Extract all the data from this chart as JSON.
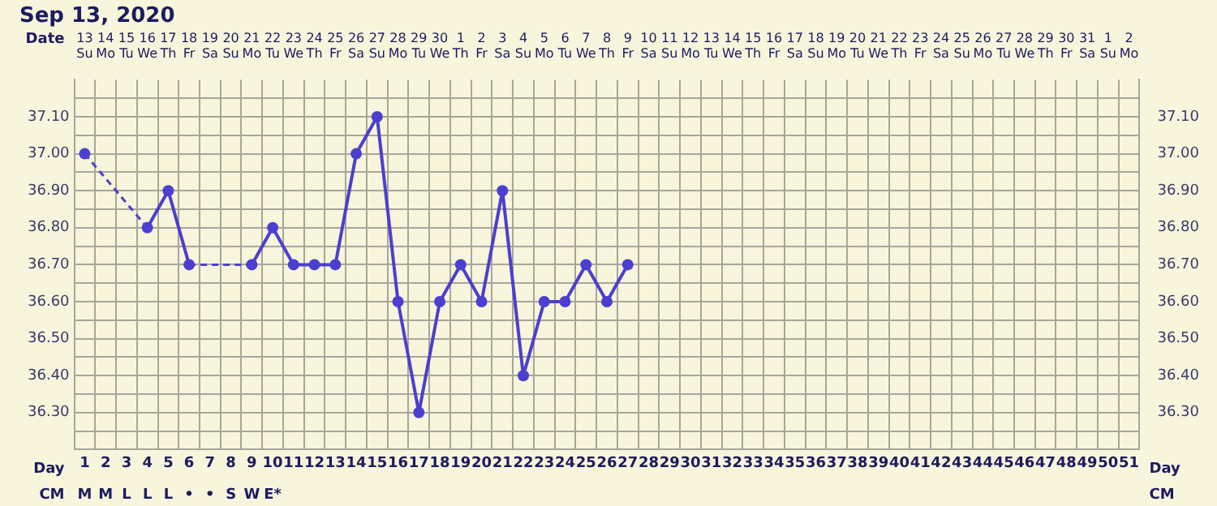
{
  "chart_data": {
    "type": "line",
    "title": "Sep 13, 2020",
    "xlabel": "Day",
    "x2label": "Date",
    "x": [
      1,
      2,
      3,
      4,
      5,
      6,
      7,
      8,
      9,
      10,
      11,
      12,
      13,
      14,
      15,
      16,
      17,
      18,
      19,
      20,
      21,
      22,
      23,
      24,
      25,
      26,
      27
    ],
    "series": [
      {
        "color": "#4b3fcf",
        "values": [
          37.0,
          null,
          null,
          36.8,
          36.9,
          36.7,
          null,
          null,
          36.7,
          36.8,
          36.7,
          36.7,
          36.7,
          37.0,
          37.1,
          36.6,
          36.3,
          36.6,
          36.7,
          36.6,
          36.9,
          36.4,
          36.6,
          36.6,
          36.7,
          36.6,
          36.7
        ]
      }
    ],
    "xlim": [
      0.5,
      51.5
    ],
    "xticks": [
      1,
      2,
      3,
      4,
      5,
      6,
      7,
      8,
      9,
      10,
      11,
      12,
      13,
      14,
      15,
      16,
      17,
      18,
      19,
      20,
      21,
      22,
      23,
      24,
      25,
      26,
      27,
      28,
      29,
      30,
      31,
      32,
      33,
      34,
      35,
      36,
      37,
      38,
      39,
      40,
      41,
      42,
      43,
      44,
      45,
      46,
      47,
      48,
      49,
      50,
      51
    ],
    "x2lim": [
      "2020-09-12T12:00",
      "2020-11-02T12:00"
    ],
    "x2ticks": [
      {
        "value": "2020-09-13",
        "label": "13\nSu"
      },
      {
        "value": "2020-09-14",
        "label": "14\nMo"
      },
      {
        "value": "2020-09-15",
        "label": "15\nTu"
      },
      {
        "value": "2020-09-16",
        "label": "16\nWe"
      },
      {
        "value": "2020-09-17",
        "label": "17\nTh"
      },
      {
        "value": "2020-09-18",
        "label": "18\nFr"
      },
      {
        "value": "2020-09-19",
        "label": "19\nSa"
      },
      {
        "value": "2020-09-20",
        "label": "20\nSu"
      },
      {
        "value": "2020-09-21",
        "label": "21\nMo"
      },
      {
        "value": "2020-09-22",
        "label": "22\nTu"
      },
      {
        "value": "2020-09-23",
        "label": "23\nWe"
      },
      {
        "value": "2020-09-24",
        "label": "24\nTh"
      },
      {
        "value": "2020-09-25",
        "label": "25\nFr"
      },
      {
        "value": "2020-09-26",
        "label": "26\nSa"
      },
      {
        "value": "2020-09-27",
        "label": "27\nSu"
      },
      {
        "value": "2020-09-28",
        "label": "28\nMo"
      },
      {
        "value": "2020-09-29",
        "label": "29\nTu"
      },
      {
        "value": "2020-09-30",
        "label": "30\nWe"
      },
      {
        "value": "2020-10-01",
        "label": "1\nTh"
      },
      {
        "value": "2020-10-02",
        "label": "2\nFr"
      },
      {
        "value": "2020-10-03",
        "label": "3\nSa"
      },
      {
        "value": "2020-10-04",
        "label": "4\nSu"
      },
      {
        "value": "2020-10-05",
        "label": "5\nMo"
      },
      {
        "value": "2020-10-06",
        "label": "6\nTu"
      },
      {
        "value": "2020-10-07",
        "label": "7\nWe"
      },
      {
        "value": "2020-10-08",
        "label": "8\nTh"
      },
      {
        "value": "2020-10-09",
        "label": "9\nFr"
      },
      {
        "value": "2020-10-10",
        "label": "10\nSa"
      },
      {
        "value": "2020-10-11",
        "label": "11\nSu"
      },
      {
        "value": "2020-10-12",
        "label": "12\nMo"
      },
      {
        "value": "2020-10-13",
        "label": "13\nTu"
      },
      {
        "value": "2020-10-14",
        "label": "14\nWe"
      },
      {
        "value": "2020-10-15",
        "label": "15\nTh"
      },
      {
        "value": "2020-10-16",
        "label": "16\nFr"
      },
      {
        "value": "2020-10-17",
        "label": "17\nSa"
      },
      {
        "value": "2020-10-18",
        "label": "18\nSu"
      },
      {
        "value": "2020-10-19",
        "label": "19\nMo"
      },
      {
        "value": "2020-10-20",
        "label": "20\nTu"
      },
      {
        "value": "2020-10-21",
        "label": "21\nWe"
      },
      {
        "value": "2020-10-22",
        "label": "22\nTh"
      },
      {
        "value": "2020-10-23",
        "label": "23\nFr"
      },
      {
        "value": "2020-10-24",
        "label": "24\nSa"
      },
      {
        "value": "2020-10-25",
        "label": "25\nSu"
      },
      {
        "value": "2020-10-26",
        "label": "26\nMo"
      },
      {
        "value": "2020-10-27",
        "label": "27\nTu"
      },
      {
        "value": "2020-10-28",
        "label": "28\nWe"
      },
      {
        "value": "2020-10-29",
        "label": "29\nTh"
      },
      {
        "value": "2020-10-30",
        "label": "30\nFr"
      },
      {
        "value": "2020-10-31",
        "label": "31\nSa"
      },
      {
        "value": "2020-11-01",
        "label": "1\nSu"
      },
      {
        "value": "2020-11-02",
        "label": "2\nMo"
      }
    ],
    "ylim": [
      36.2,
      37.2
    ],
    "yticks": [
      {
        "value": 36.25,
        "label": null
      },
      {
        "value": 36.3,
        "label": "36.30"
      },
      {
        "value": 36.35,
        "label": null
      },
      {
        "value": 36.4,
        "label": "36.40"
      },
      {
        "value": 36.45,
        "label": null
      },
      {
        "value": 36.5,
        "label": "36.50"
      },
      {
        "value": 36.55,
        "label": null
      },
      {
        "value": 36.6,
        "label": "36.60"
      },
      {
        "value": 36.65,
        "label": null
      },
      {
        "value": 36.7,
        "label": "36.70"
      },
      {
        "value": 36.75,
        "label": null
      },
      {
        "value": 36.8,
        "label": "36.80"
      },
      {
        "value": 36.85,
        "label": null
      },
      {
        "value": 36.9,
        "label": "36.90"
      },
      {
        "value": 36.95,
        "label": null
      },
      {
        "value": 37.0,
        "label": "37.00"
      },
      {
        "value": 37.05,
        "label": null
      },
      {
        "value": 37.1,
        "label": "37.10"
      },
      {
        "value": 37.15,
        "label": null
      }
    ],
    "y2lim": [
      36.2,
      37.2
    ],
    "y2ticks": [
      {
        "value": 36.25,
        "label": null
      },
      {
        "value": 36.3,
        "label": "36.30"
      },
      {
        "value": 36.35,
        "label": null
      },
      {
        "value": 36.4,
        "label": "36.40"
      },
      {
        "value": 36.45,
        "label": null
      },
      {
        "value": 36.5,
        "label": "36.50"
      },
      {
        "value": 36.55,
        "label": null
      },
      {
        "value": 36.6,
        "label": "36.60"
      },
      {
        "value": 36.65,
        "label": null
      },
      {
        "value": 36.7,
        "label": "36.70"
      },
      {
        "value": 36.75,
        "label": null
      },
      {
        "value": 36.8,
        "label": "36.80"
      },
      {
        "value": 36.85,
        "label": null
      },
      {
        "value": 36.9,
        "label": "36.90"
      },
      {
        "value": 36.95,
        "label": null
      },
      {
        "value": 37.0,
        "label": "37.00"
      },
      {
        "value": 37.05,
        "label": null
      },
      {
        "value": 37.1,
        "label": "37.10"
      },
      {
        "value": 37.15,
        "label": null
      }
    ],
    "annotations": [
      "CM",
      "M",
      "M",
      "L",
      "L",
      "L",
      "•",
      "•",
      "S",
      "W",
      "E*"
    ],
    "grid": true,
    "marker": "circle",
    "line_style": "solid",
    "legend": false
  }
}
